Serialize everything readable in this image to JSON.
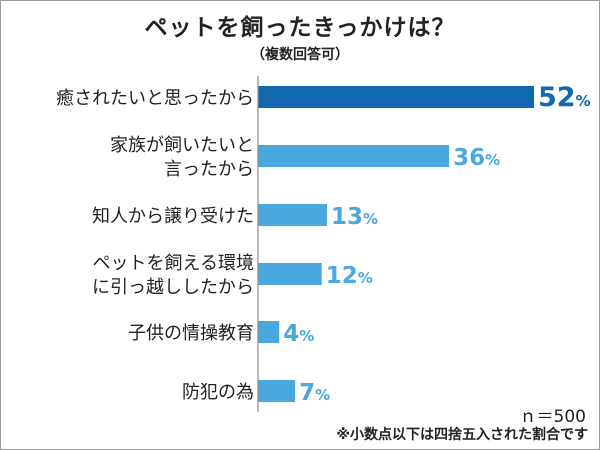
{
  "title": "ペットを飼ったきっかけは？",
  "subtitle": "（複数回答可）",
  "chart_data": {
    "type": "bar",
    "orientation": "horizontal",
    "categories": [
      [
        "癒されたいと思ったから"
      ],
      [
        "家族が飼いたいと",
        "言ったから"
      ],
      [
        "知人から譲り受けた"
      ],
      [
        "ペットを飼える環境",
        "に引っ越ししたから"
      ],
      [
        "子供の情操教育"
      ],
      [
        "防犯の為"
      ]
    ],
    "values": [
      52,
      36,
      13,
      12,
      4,
      7
    ],
    "unit": "%",
    "xlim": [
      0,
      52
    ],
    "colors": {
      "highlight": "#1369b0",
      "bar": "#4aa8de",
      "axis": "#8c8c8c"
    }
  },
  "notes": {
    "sample_size": "ｎ＝500",
    "rounding": "※小数点以下は四捨五入された割合です"
  }
}
